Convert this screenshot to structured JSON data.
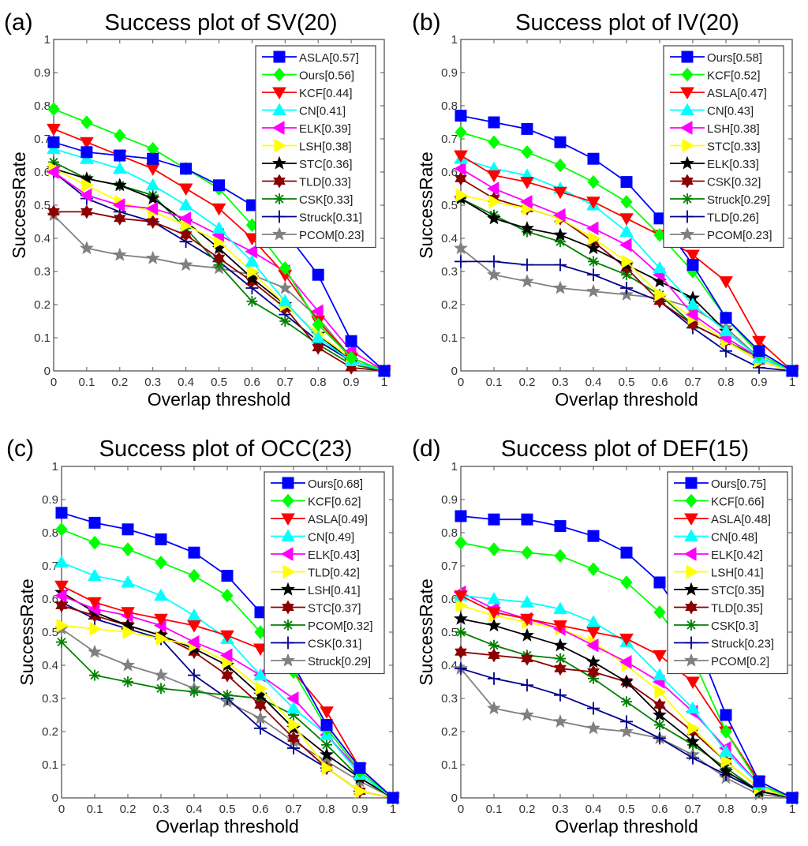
{
  "chart_data": [
    {
      "type": "line",
      "panel_label": "(a)",
      "title": "Success plot of SV(20)",
      "xlabel": "Overlap threshold",
      "ylabel": "SuccessRate",
      "xlim": [
        0,
        1
      ],
      "ylim": [
        0,
        1
      ],
      "x": [
        0,
        0.1,
        0.2,
        0.3,
        0.4,
        0.5,
        0.6,
        0.7,
        0.8,
        0.9,
        1
      ],
      "xticks": [
        "0",
        "0.1",
        "0.2",
        "0.3",
        "0.4",
        "0.5",
        "0.6",
        "0.7",
        "0.8",
        "0.9",
        "1"
      ],
      "yticks": [
        "0",
        "0.1",
        "0.2",
        "0.3",
        "0.4",
        "0.5",
        "0.6",
        "0.7",
        "0.8",
        "0.9",
        "1"
      ],
      "grid": false,
      "legend_position": "top-right",
      "series": [
        {
          "name": "ASLA[0.57]",
          "color": "#0000ff",
          "marker": "square",
          "values": [
            0.69,
            0.66,
            0.65,
            0.64,
            0.61,
            0.56,
            0.5,
            0.42,
            0.29,
            0.09,
            0.0
          ]
        },
        {
          "name": "Ours[0.56]",
          "color": "#00ff00",
          "marker": "diamond",
          "values": [
            0.79,
            0.75,
            0.71,
            0.67,
            0.61,
            0.55,
            0.44,
            0.31,
            0.14,
            0.04,
            0.0
          ]
        },
        {
          "name": "KCF[0.44]",
          "color": "#ff0000",
          "marker": "triangle-down",
          "values": [
            0.73,
            0.69,
            0.65,
            0.61,
            0.55,
            0.49,
            0.4,
            0.29,
            0.15,
            0.04,
            0.0
          ]
        },
        {
          "name": "CN[0.41]",
          "color": "#00ffff",
          "marker": "triangle-up",
          "values": [
            0.67,
            0.64,
            0.61,
            0.56,
            0.5,
            0.43,
            0.33,
            0.21,
            0.1,
            0.03,
            0.0
          ]
        },
        {
          "name": "ELK[0.39]",
          "color": "#ff00ff",
          "marker": "triangle-left",
          "values": [
            0.6,
            0.53,
            0.5,
            0.49,
            0.46,
            0.41,
            0.36,
            0.3,
            0.18,
            0.06,
            0.0
          ]
        },
        {
          "name": "LSH[0.38]",
          "color": "#ffff00",
          "marker": "triangle-right",
          "values": [
            0.61,
            0.56,
            0.51,
            0.48,
            0.44,
            0.39,
            0.3,
            0.2,
            0.11,
            0.04,
            0.0
          ]
        },
        {
          "name": "STC[0.36]",
          "color": "#000000",
          "marker": "pentagram",
          "values": [
            0.61,
            0.58,
            0.56,
            0.52,
            0.45,
            0.37,
            0.28,
            0.2,
            0.11,
            0.03,
            0.0
          ]
        },
        {
          "name": "TLD[0.33]",
          "color": "#8b0000",
          "marker": "hexagram",
          "values": [
            0.48,
            0.48,
            0.46,
            0.45,
            0.41,
            0.34,
            0.27,
            0.19,
            0.07,
            0.01,
            0.0
          ]
        },
        {
          "name": "CSK[0.33]",
          "color": "#008000",
          "marker": "asterisk",
          "values": [
            0.63,
            0.58,
            0.56,
            0.53,
            0.43,
            0.32,
            0.21,
            0.15,
            0.08,
            0.02,
            0.0
          ]
        },
        {
          "name": "Struck[0.31]",
          "color": "#00008b",
          "marker": "plus",
          "values": [
            0.6,
            0.52,
            0.48,
            0.45,
            0.39,
            0.33,
            0.25,
            0.17,
            0.09,
            0.03,
            0.0
          ]
        },
        {
          "name": "PCOM[0.23]",
          "color": "#808080",
          "marker": "pentagram",
          "values": [
            0.47,
            0.37,
            0.35,
            0.34,
            0.32,
            0.31,
            0.29,
            0.25,
            0.16,
            0.04,
            0.0
          ]
        }
      ]
    },
    {
      "type": "line",
      "panel_label": "(b)",
      "title": "Success plot of IV(20)",
      "xlabel": "Overlap threshold",
      "ylabel": "SuccessRate",
      "xlim": [
        0,
        1
      ],
      "ylim": [
        0,
        1
      ],
      "x": [
        0,
        0.1,
        0.2,
        0.3,
        0.4,
        0.5,
        0.6,
        0.7,
        0.8,
        0.9,
        1
      ],
      "xticks": [
        "0",
        "0.1",
        "0.2",
        "0.3",
        "0.4",
        "0.5",
        "0.6",
        "0.7",
        "0.8",
        "0.9",
        "1"
      ],
      "yticks": [
        "0",
        "0.1",
        "0.2",
        "0.3",
        "0.4",
        "0.5",
        "0.6",
        "0.7",
        "0.8",
        "0.9",
        "1"
      ],
      "grid": false,
      "legend_position": "top-right",
      "series": [
        {
          "name": "Ours[0.58]",
          "color": "#0000ff",
          "marker": "square",
          "values": [
            0.77,
            0.75,
            0.73,
            0.69,
            0.64,
            0.57,
            0.46,
            0.32,
            0.16,
            0.06,
            0.0
          ]
        },
        {
          "name": "KCF[0.52]",
          "color": "#00ff00",
          "marker": "diamond",
          "values": [
            0.72,
            0.69,
            0.66,
            0.62,
            0.57,
            0.51,
            0.41,
            0.3,
            0.16,
            0.05,
            0.0
          ]
        },
        {
          "name": "ASLA[0.47]",
          "color": "#ff0000",
          "marker": "triangle-down",
          "values": [
            0.65,
            0.59,
            0.57,
            0.54,
            0.51,
            0.46,
            0.41,
            0.35,
            0.27,
            0.09,
            0.0
          ]
        },
        {
          "name": "CN[0.43]",
          "color": "#00ffff",
          "marker": "triangle-up",
          "values": [
            0.64,
            0.61,
            0.59,
            0.55,
            0.5,
            0.42,
            0.31,
            0.2,
            0.12,
            0.04,
            0.0
          ]
        },
        {
          "name": "LSH[0.38]",
          "color": "#ff00ff",
          "marker": "triangle-left",
          "values": [
            0.61,
            0.55,
            0.51,
            0.47,
            0.43,
            0.38,
            0.29,
            0.17,
            0.1,
            0.04,
            0.0
          ]
        },
        {
          "name": "STC[0.33]",
          "color": "#ffff00",
          "marker": "triangle-right",
          "values": [
            0.53,
            0.51,
            0.49,
            0.46,
            0.4,
            0.33,
            0.23,
            0.16,
            0.09,
            0.03,
            0.0
          ]
        },
        {
          "name": "ELK[0.33]",
          "color": "#000000",
          "marker": "pentagram",
          "values": [
            0.52,
            0.46,
            0.43,
            0.41,
            0.37,
            0.32,
            0.27,
            0.22,
            0.12,
            0.04,
            0.0
          ]
        },
        {
          "name": "CSK[0.32]",
          "color": "#8b0000",
          "marker": "hexagram",
          "values": [
            0.58,
            0.52,
            0.49,
            0.46,
            0.39,
            0.31,
            0.21,
            0.14,
            0.09,
            0.03,
            0.0
          ]
        },
        {
          "name": "Struck[0.29]",
          "color": "#008000",
          "marker": "asterisk",
          "values": [
            0.52,
            0.47,
            0.42,
            0.39,
            0.33,
            0.29,
            0.23,
            0.14,
            0.09,
            0.04,
            0.0
          ]
        },
        {
          "name": "TLD[0.26]",
          "color": "#00008b",
          "marker": "plus",
          "values": [
            0.33,
            0.33,
            0.32,
            0.32,
            0.29,
            0.25,
            0.21,
            0.13,
            0.06,
            0.01,
            0.0
          ]
        },
        {
          "name": "PCOM[0.23]",
          "color": "#808080",
          "marker": "pentagram",
          "values": [
            0.37,
            0.29,
            0.27,
            0.25,
            0.24,
            0.23,
            0.22,
            0.19,
            0.13,
            0.04,
            0.0
          ]
        }
      ]
    },
    {
      "type": "line",
      "panel_label": "(c)",
      "title": "Success plot of OCC(23)",
      "xlabel": "Overlap threshold",
      "ylabel": "SuccessRate",
      "xlim": [
        0,
        1
      ],
      "ylim": [
        0,
        1
      ],
      "x": [
        0,
        0.1,
        0.2,
        0.3,
        0.4,
        0.5,
        0.6,
        0.7,
        0.8,
        0.9,
        1
      ],
      "xticks": [
        "0",
        "0.1",
        "0.2",
        "0.3",
        "0.4",
        "0.5",
        "0.6",
        "0.7",
        "0.8",
        "0.9",
        "1"
      ],
      "yticks": [
        "0",
        "0.1",
        "0.2",
        "0.3",
        "0.4",
        "0.5",
        "0.6",
        "0.7",
        "0.8",
        "0.9",
        "1"
      ],
      "grid": false,
      "legend_position": "top-right",
      "series": [
        {
          "name": "Ours[0.68]",
          "color": "#0000ff",
          "marker": "square",
          "values": [
            0.86,
            0.83,
            0.81,
            0.78,
            0.74,
            0.67,
            0.56,
            0.4,
            0.22,
            0.09,
            0.0
          ]
        },
        {
          "name": "KCF[0.62]",
          "color": "#00ff00",
          "marker": "diamond",
          "values": [
            0.81,
            0.77,
            0.75,
            0.71,
            0.67,
            0.61,
            0.5,
            0.38,
            0.21,
            0.08,
            0.0
          ]
        },
        {
          "name": "ASLA[0.49]",
          "color": "#ff0000",
          "marker": "triangle-down",
          "values": [
            0.64,
            0.59,
            0.56,
            0.54,
            0.52,
            0.49,
            0.45,
            0.38,
            0.26,
            0.09,
            0.0
          ]
        },
        {
          "name": "CN[0.49]",
          "color": "#00ffff",
          "marker": "triangle-up",
          "values": [
            0.71,
            0.67,
            0.65,
            0.61,
            0.55,
            0.48,
            0.37,
            0.27,
            0.19,
            0.07,
            0.0
          ]
        },
        {
          "name": "ELK[0.43]",
          "color": "#ff00ff",
          "marker": "triangle-left",
          "values": [
            0.61,
            0.57,
            0.55,
            0.52,
            0.47,
            0.43,
            0.37,
            0.3,
            0.19,
            0.08,
            0.0
          ]
        },
        {
          "name": "TLD[0.42]",
          "color": "#ffff00",
          "marker": "triangle-right",
          "values": [
            0.52,
            0.51,
            0.5,
            0.48,
            0.46,
            0.41,
            0.33,
            0.22,
            0.09,
            0.02,
            0.0
          ]
        },
        {
          "name": "LSH[0.41]",
          "color": "#000000",
          "marker": "pentagram",
          "values": [
            0.62,
            0.56,
            0.52,
            0.49,
            0.45,
            0.4,
            0.31,
            0.21,
            0.13,
            0.06,
            0.0
          ]
        },
        {
          "name": "STC[0.37]",
          "color": "#8b0000",
          "marker": "hexagram",
          "values": [
            0.58,
            0.55,
            0.52,
            0.49,
            0.44,
            0.37,
            0.28,
            0.18,
            0.09,
            0.02,
            0.0
          ]
        },
        {
          "name": "PCOM[0.32]",
          "color": "#008000",
          "marker": "asterisk",
          "values": [
            0.47,
            0.37,
            0.35,
            0.33,
            0.32,
            0.31,
            0.3,
            0.25,
            0.16,
            0.06,
            0.0
          ]
        },
        {
          "name": "CSK[0.31]",
          "color": "#00008b",
          "marker": "plus",
          "values": [
            0.59,
            0.54,
            0.51,
            0.48,
            0.37,
            0.3,
            0.21,
            0.15,
            0.09,
            0.02,
            0.0
          ]
        },
        {
          "name": "Struck[0.29]",
          "color": "#808080",
          "marker": "pentagram",
          "values": [
            0.51,
            0.44,
            0.4,
            0.37,
            0.33,
            0.29,
            0.24,
            0.17,
            0.11,
            0.05,
            0.0
          ]
        }
      ]
    },
    {
      "type": "line",
      "panel_label": "(d)",
      "title": "Success plot of DEF(15)",
      "xlabel": "Overlap threshold",
      "ylabel": "SuccessRate",
      "xlim": [
        0,
        1
      ],
      "ylim": [
        0,
        1
      ],
      "x": [
        0,
        0.1,
        0.2,
        0.3,
        0.4,
        0.5,
        0.6,
        0.7,
        0.8,
        0.9,
        1
      ],
      "xticks": [
        "0",
        "0.1",
        "0.2",
        "0.3",
        "0.4",
        "0.5",
        "0.6",
        "0.7",
        "0.8",
        "0.9",
        "1"
      ],
      "yticks": [
        "0",
        "0.1",
        "0.2",
        "0.3",
        "0.4",
        "0.5",
        "0.6",
        "0.7",
        "0.8",
        "0.9",
        "1"
      ],
      "grid": false,
      "legend_position": "top-right",
      "series": [
        {
          "name": "Ours[0.75]",
          "color": "#0000ff",
          "marker": "square",
          "values": [
            0.85,
            0.84,
            0.84,
            0.82,
            0.79,
            0.74,
            0.65,
            0.5,
            0.25,
            0.05,
            0.0
          ]
        },
        {
          "name": "KCF[0.66]",
          "color": "#00ff00",
          "marker": "diamond",
          "values": [
            0.77,
            0.75,
            0.74,
            0.73,
            0.69,
            0.65,
            0.56,
            0.42,
            0.2,
            0.04,
            0.0
          ]
        },
        {
          "name": "ASLA[0.48]",
          "color": "#ff0000",
          "marker": "triangle-down",
          "values": [
            0.61,
            0.56,
            0.54,
            0.52,
            0.5,
            0.48,
            0.43,
            0.35,
            0.2,
            0.05,
            0.0
          ]
        },
        {
          "name": "CN[0.48]",
          "color": "#00ffff",
          "marker": "triangle-up",
          "values": [
            0.61,
            0.6,
            0.59,
            0.57,
            0.53,
            0.47,
            0.37,
            0.27,
            0.14,
            0.04,
            0.0
          ]
        },
        {
          "name": "ELK[0.42]",
          "color": "#ff00ff",
          "marker": "triangle-left",
          "values": [
            0.62,
            0.57,
            0.54,
            0.51,
            0.46,
            0.41,
            0.35,
            0.26,
            0.15,
            0.04,
            0.0
          ]
        },
        {
          "name": "LSH[0.41]",
          "color": "#ffff00",
          "marker": "triangle-right",
          "values": [
            0.58,
            0.55,
            0.53,
            0.51,
            0.47,
            0.4,
            0.32,
            0.21,
            0.11,
            0.03,
            0.0
          ]
        },
        {
          "name": "STC[0.35]",
          "color": "#000000",
          "marker": "pentagram",
          "values": [
            0.54,
            0.52,
            0.49,
            0.46,
            0.41,
            0.35,
            0.25,
            0.17,
            0.08,
            0.02,
            0.0
          ]
        },
        {
          "name": "TLD[0.35]",
          "color": "#8b0000",
          "marker": "hexagram",
          "values": [
            0.44,
            0.43,
            0.42,
            0.39,
            0.38,
            0.35,
            0.28,
            0.2,
            0.11,
            0.03,
            0.0
          ]
        },
        {
          "name": "CSK[0.3]",
          "color": "#008000",
          "marker": "asterisk",
          "values": [
            0.5,
            0.46,
            0.43,
            0.42,
            0.36,
            0.29,
            0.22,
            0.16,
            0.09,
            0.02,
            0.0
          ]
        },
        {
          "name": "Struck[0.23]",
          "color": "#00008b",
          "marker": "plus",
          "values": [
            0.39,
            0.36,
            0.34,
            0.31,
            0.27,
            0.23,
            0.18,
            0.12,
            0.07,
            0.02,
            0.0
          ]
        },
        {
          "name": "PCOM[0.2]",
          "color": "#808080",
          "marker": "pentagram",
          "values": [
            0.39,
            0.27,
            0.25,
            0.23,
            0.21,
            0.2,
            0.18,
            0.13,
            0.06,
            0.01,
            0.0
          ]
        }
      ]
    }
  ]
}
